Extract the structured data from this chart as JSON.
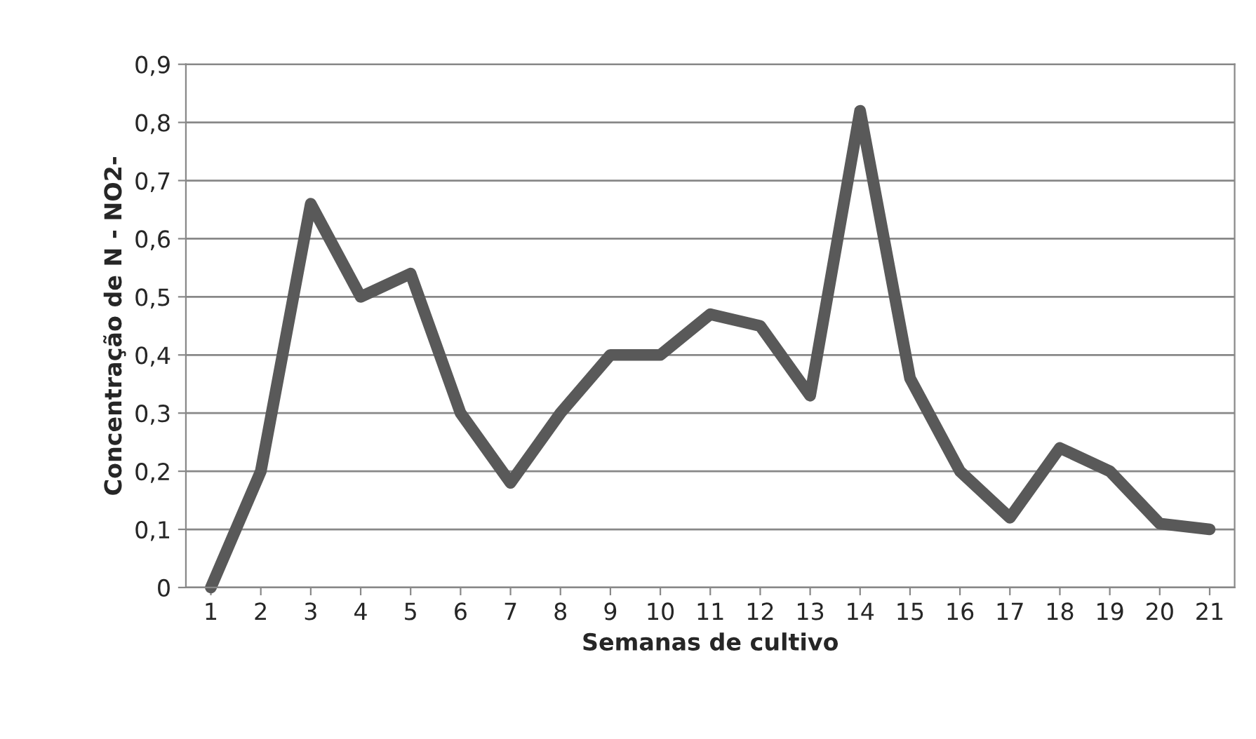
{
  "chart_data": {
    "type": "line",
    "xlabel": "Semanas de cultivo",
    "ylabel": "Concentração de N - NO2-",
    "categories": [
      "1",
      "2",
      "3",
      "4",
      "5",
      "6",
      "7",
      "8",
      "9",
      "10",
      "11",
      "12",
      "13",
      "14",
      "15",
      "16",
      "17",
      "18",
      "19",
      "20",
      "21"
    ],
    "series": [
      {
        "color": "#595959",
        "values": [
          0,
          0.2,
          0.66,
          0.5,
          0.54,
          0.3,
          0.18,
          0.3,
          0.4,
          0.4,
          0.47,
          0.45,
          0.33,
          0.82,
          0.36,
          0.2,
          0.12,
          0.24,
          0.2,
          0.11,
          0.1
        ]
      }
    ],
    "ylim": [
      0,
      0.9
    ],
    "yticks": [
      0,
      {
        "value": 0.1,
        "label": "0,1"
      },
      {
        "value": 0.2,
        "label": "0,2"
      },
      {
        "value": 0.3,
        "label": "0,3"
      },
      {
        "value": 0.4,
        "label": "0,4"
      },
      {
        "value": 0.5,
        "label": "0,5"
      },
      {
        "value": 0.6,
        "label": "0,6"
      },
      {
        "value": 0.7,
        "label": "0,7"
      },
      {
        "value": 0.8,
        "label": "0,8"
      },
      {
        "value": 0.9,
        "label": "0,9"
      }
    ],
    "grid": "y",
    "marker": "none",
    "line_style": "solid"
  }
}
